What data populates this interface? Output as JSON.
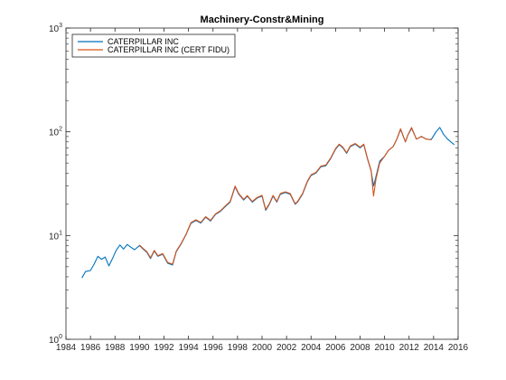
{
  "chart_data": {
    "type": "line",
    "title": "Machinery-Constr&Mining",
    "xlabel": "",
    "ylabel": "",
    "xlim": [
      1984,
      2016
    ],
    "ylim": [
      1,
      1000
    ],
    "yscale": "log",
    "grid": false,
    "legend_placement": "top-left",
    "x_ticks": [
      "1984",
      "1986",
      "1988",
      "1990",
      "1992",
      "1994",
      "1996",
      "1998",
      "2000",
      "2002",
      "2004",
      "2006",
      "2008",
      "2010",
      "2012",
      "2014",
      "2016"
    ],
    "y_ticks": [
      {
        "value": 1,
        "base": "10",
        "exp": "0"
      },
      {
        "value": 10,
        "base": "10",
        "exp": "1"
      },
      {
        "value": 100,
        "base": "10",
        "exp": "2"
      },
      {
        "value": 1000,
        "base": "10",
        "exp": "3"
      }
    ],
    "series": [
      {
        "name": "CATERPILLAR INC",
        "color": "#0072BD",
        "x": [
          1985.3,
          1985.6,
          1986.0,
          1986.3,
          1986.6,
          1986.9,
          1987.2,
          1987.5,
          1987.8,
          1988.1,
          1988.4,
          1988.7,
          1989.0,
          1989.3,
          1989.6,
          1990.0,
          1990.3,
          1990.6,
          1990.9,
          1991.2,
          1991.5,
          1991.9,
          1992.3,
          1992.7,
          1993.0,
          1993.4,
          1993.8,
          1994.2,
          1994.6,
          1995.0,
          1995.4,
          1995.8,
          1996.2,
          1996.6,
          1997.0,
          1997.4,
          1997.8,
          1998.1,
          1998.5,
          1998.8,
          1999.2,
          1999.6,
          2000.0,
          2000.3,
          2000.6,
          2000.9,
          2001.2,
          2001.5,
          2001.9,
          2002.3,
          2002.7,
          2002.9,
          2003.3,
          2003.7,
          2004.0,
          2004.4,
          2004.8,
          2005.2,
          2005.6,
          2006.0,
          2006.3,
          2006.6,
          2006.9,
          2007.2,
          2007.6,
          2008.0,
          2008.3,
          2008.6,
          2008.9,
          2009.1,
          2009.3,
          2009.6,
          2010.0,
          2010.3,
          2010.7,
          2011.0,
          2011.3,
          2011.7,
          2011.9,
          2012.2,
          2012.6,
          2013.0,
          2013.4,
          2013.8,
          2014.2,
          2014.5,
          2014.8,
          2015.1,
          2015.4,
          2015.7
        ],
        "y": [
          3.9,
          4.5,
          4.6,
          5.3,
          6.3,
          5.9,
          6.2,
          5.1,
          6.0,
          7.2,
          8.1,
          7.4,
          8.2,
          7.7,
          7.3,
          8.0,
          7.4,
          6.9,
          6.0,
          7.1,
          6.3,
          6.6,
          5.4,
          5.2,
          7.0,
          8.3,
          10.2,
          13.1,
          14.0,
          13.2,
          15.0,
          13.8,
          16.0,
          17.1,
          19.0,
          21.0,
          29.5,
          25.0,
          22.0,
          24.0,
          21.0,
          23.0,
          24.0,
          17.5,
          20.0,
          24.0,
          21.0,
          25.0,
          26.0,
          25.0,
          20.0,
          21.0,
          25.0,
          33.0,
          38.0,
          40.0,
          46.0,
          47.0,
          55.0,
          68.0,
          75.0,
          70.0,
          62.0,
          72.0,
          76.0,
          70.0,
          75.0,
          55.0,
          42.0,
          30.0,
          37.0,
          52.0,
          58.0,
          66.0,
          72.0,
          85.0,
          105.0,
          80.0,
          93.0,
          108.0,
          85.0,
          90.0,
          85.0,
          84.0,
          100.0,
          110.0,
          95.0,
          86.0,
          80.0,
          75.0
        ]
      },
      {
        "name": "CATERPILLAR INC (CERT FIDU)",
        "color": "#D95319",
        "x": [
          1990.0,
          1990.3,
          1990.6,
          1990.9,
          1991.2,
          1991.5,
          1991.9,
          1992.3,
          1992.7,
          1993.0,
          1993.4,
          1993.8,
          1994.2,
          1994.6,
          1995.0,
          1995.4,
          1995.8,
          1996.2,
          1996.6,
          1997.0,
          1997.4,
          1997.8,
          1998.1,
          1998.5,
          1998.8,
          1999.2,
          1999.6,
          2000.0,
          2000.3,
          2000.6,
          2000.9,
          2001.2,
          2001.5,
          2001.9,
          2002.3,
          2002.7,
          2002.9,
          2003.3,
          2003.7,
          2004.0,
          2004.4,
          2004.8,
          2005.2,
          2005.6,
          2006.0,
          2006.3,
          2006.6,
          2006.9,
          2007.2,
          2007.6,
          2008.0,
          2008.3,
          2008.6,
          2008.9,
          2009.1,
          2009.3,
          2009.6,
          2010.0,
          2010.3,
          2010.7,
          2011.0,
          2011.3,
          2011.7,
          2011.9,
          2012.2,
          2012.6,
          2013.0,
          2013.4,
          2013.8
        ],
        "y": [
          8.1,
          7.5,
          7.0,
          6.1,
          7.2,
          6.4,
          6.7,
          5.5,
          5.3,
          7.1,
          8.4,
          10.3,
          13.3,
          14.2,
          13.4,
          15.2,
          14.0,
          16.2,
          17.3,
          19.3,
          21.3,
          30.0,
          25.4,
          22.3,
          24.3,
          21.3,
          23.3,
          24.4,
          17.8,
          20.3,
          24.4,
          21.3,
          25.4,
          26.4,
          25.4,
          20.3,
          21.3,
          25.4,
          33.5,
          38.6,
          40.6,
          46.7,
          47.7,
          55.8,
          69.0,
          76.1,
          71.0,
          62.9,
          73.0,
          77.1,
          71.0,
          76.1,
          55.8,
          42.6,
          24.0,
          35.0,
          50.0,
          58.0,
          66.0,
          72.0,
          85.0,
          107.0,
          80.0,
          93.0,
          110.0,
          85.0,
          90.0,
          85.0,
          84.0
        ]
      }
    ]
  }
}
